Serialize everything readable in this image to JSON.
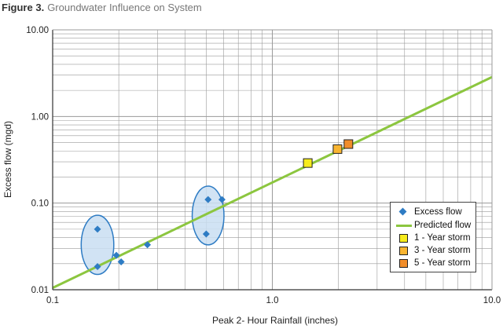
{
  "figure": {
    "label": "Figure 3.",
    "title": "Groundwater Influence on System"
  },
  "colors": {
    "excess_flow": "#2e7cc4",
    "predicted_flow": "#8cc63f",
    "ellipse_fill": "#c9def2",
    "ellipse_stroke": "#2e7cc4",
    "grid": "#9a9a9a",
    "storm_1": "#f7ec1c",
    "storm_3": "#f9b531",
    "storm_5": "#f18d2a"
  },
  "legend": {
    "placement": "bottom-right",
    "items": [
      {
        "label": "Excess flow",
        "symbol": "diamond",
        "color": "#2e7cc4"
      },
      {
        "label": "Predicted flow",
        "symbol": "line",
        "color": "#8cc63f"
      },
      {
        "label": "1 - Year storm",
        "symbol": "square",
        "color": "#f7ec1c"
      },
      {
        "label": "3 - Year storm",
        "symbol": "square",
        "color": "#f9b531"
      },
      {
        "label": "5 - Year storm",
        "symbol": "square",
        "color": "#f18d2a"
      }
    ]
  },
  "chart_data": {
    "type": "scatter",
    "xlabel": "Peak 2- Hour Rainfall (inches)",
    "ylabel": "Excess flow (mgd)",
    "x_scale": "log",
    "y_scale": "log",
    "xlim": [
      0.1,
      10.0
    ],
    "ylim": [
      0.01,
      10.0
    ],
    "x_ticks": [
      0.1,
      1.0,
      10.0
    ],
    "x_tick_labels": [
      "0.1",
      "1.0",
      "10.0"
    ],
    "y_ticks": [
      0.01,
      0.1,
      1.0,
      10.0
    ],
    "y_tick_labels": [
      "0.01",
      "0.10",
      "1.00",
      "10.00"
    ],
    "grid": true,
    "series": [
      {
        "name": "Excess flow",
        "marker": "diamond",
        "x": [
          0.16,
          0.16,
          0.195,
          0.205,
          0.27,
          0.5,
          0.51,
          0.59
        ],
        "y": [
          0.05,
          0.0185,
          0.025,
          0.021,
          0.033,
          0.044,
          0.11,
          0.11
        ]
      },
      {
        "name": "Predicted flow",
        "line": true,
        "x": [
          0.1,
          10.0
        ],
        "y": [
          0.0105,
          2.85
        ]
      },
      {
        "name": "1 - Year storm",
        "marker": "square",
        "x": [
          1.45
        ],
        "y": [
          0.29
        ]
      },
      {
        "name": "3 - Year storm",
        "marker": "square",
        "x": [
          1.98
        ],
        "y": [
          0.42
        ]
      },
      {
        "name": "5 - Year storm",
        "marker": "square",
        "x": [
          2.22
        ],
        "y": [
          0.48
        ]
      }
    ],
    "highlight_ellipses": [
      {
        "x_center": 0.16,
        "y_center": 0.033,
        "x_extent": [
          0.135,
          0.19
        ],
        "y_extent": [
          0.0145,
          0.07
        ]
      },
      {
        "x_center": 0.51,
        "y_center": 0.072,
        "x_extent": [
          0.43,
          0.6
        ],
        "y_extent": [
          0.0335,
          0.16
        ]
      }
    ]
  }
}
